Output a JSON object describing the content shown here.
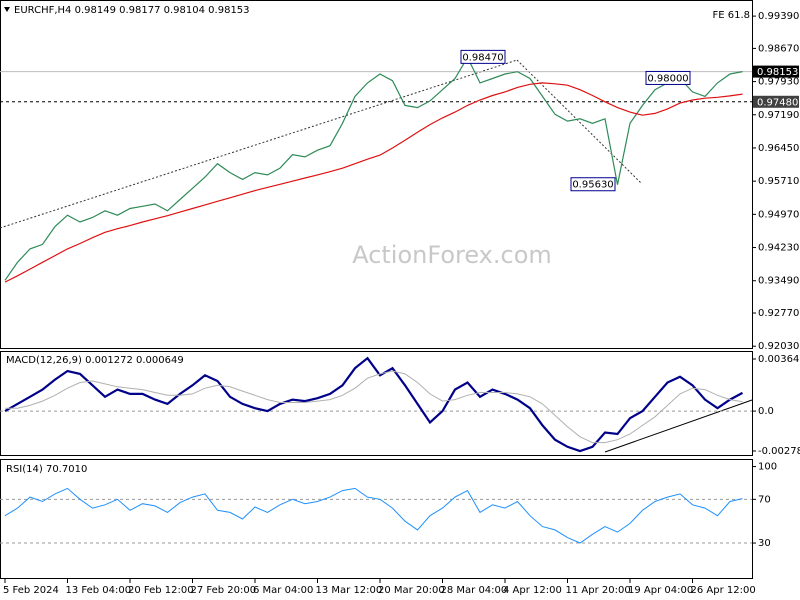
{
  "chart_data": [
    {
      "type": "line",
      "title": "EURCHF,H4 0.98149 0.98177 0.98104 0.98153",
      "fib_label": "FE 61.8",
      "watermark": "ActionForex.com",
      "ylim": [
        0.9199,
        0.9966
      ],
      "yticks": [
        {
          "value": 0.9939,
          "label": "0.99390"
        },
        {
          "value": 0.9867,
          "label": "0.98670"
        },
        {
          "value": 0.9793,
          "label": "0.97930"
        },
        {
          "value": 0.9719,
          "label": "0.97190"
        },
        {
          "value": 0.9645,
          "label": "0.96450"
        },
        {
          "value": 0.9571,
          "label": "0.95710"
        },
        {
          "value": 0.9497,
          "label": "0.94970"
        },
        {
          "value": 0.9423,
          "label": "0.94230"
        },
        {
          "value": 0.9349,
          "label": "0.93490"
        },
        {
          "value": 0.9277,
          "label": "0.92770"
        },
        {
          "value": 0.9203,
          "label": "0.92030"
        }
      ],
      "hlines": [
        {
          "value": 0.98153,
          "label": "0.98153",
          "color": "#000000",
          "style": "solid"
        },
        {
          "value": 0.9748,
          "label": "0.97480",
          "color": "#404040",
          "style": "dashed"
        }
      ],
      "annotations": [
        {
          "value": 0.9847,
          "label": "0.98470"
        },
        {
          "value": 0.98,
          "label": "0.98000"
        },
        {
          "value": 0.9563,
          "label": "0.95630"
        }
      ],
      "series": [
        {
          "name": "EURCHF",
          "color": "#2e8b57",
          "values": [
            0.935,
            0.939,
            0.942,
            0.943,
            0.947,
            0.9495,
            0.948,
            0.949,
            0.9505,
            0.9495,
            0.951,
            0.9515,
            0.952,
            0.9505,
            0.953,
            0.9555,
            0.958,
            0.961,
            0.959,
            0.9575,
            0.959,
            0.9585,
            0.96,
            0.963,
            0.9625,
            0.964,
            0.965,
            0.97,
            0.976,
            0.979,
            0.981,
            0.9795,
            0.974,
            0.9735,
            0.975,
            0.9775,
            0.98,
            0.9847,
            0.979,
            0.98,
            0.981,
            0.9815,
            0.98,
            0.976,
            0.972,
            0.9705,
            0.971,
            0.97,
            0.971,
            0.9563,
            0.97,
            0.974,
            0.9775,
            0.979,
            0.98,
            0.977,
            0.976,
            0.979,
            0.981,
            0.98153
          ]
        },
        {
          "name": "MA",
          "color": "#e01010",
          "values": [
            0.9346,
            0.936,
            0.9375,
            0.939,
            0.9405,
            0.942,
            0.9432,
            0.9445,
            0.9457,
            0.9465,
            0.9472,
            0.948,
            0.9487,
            0.9494,
            0.9502,
            0.951,
            0.9518,
            0.9526,
            0.9534,
            0.9542,
            0.955,
            0.9557,
            0.9564,
            0.9571,
            0.9578,
            0.9585,
            0.9592,
            0.96,
            0.961,
            0.962,
            0.9629,
            0.9645,
            0.9662,
            0.968,
            0.9697,
            0.9712,
            0.9725,
            0.974,
            0.9752,
            0.9762,
            0.977,
            0.978,
            0.9787,
            0.979,
            0.9788,
            0.9785,
            0.9775,
            0.9762,
            0.9748,
            0.9735,
            0.9725,
            0.9718,
            0.9722,
            0.9732,
            0.9745,
            0.9752,
            0.9756,
            0.9758,
            0.9761,
            0.9765
          ]
        }
      ]
    },
    {
      "type": "line",
      "title": "MACD(12,26,9) 0.001272 0.000649",
      "ylim": [
        -0.00307,
        0.00413
      ],
      "yticks": [
        0.003641,
        {
          "value": 0,
          "label": "0.0"
        },
        -0.002788
      ],
      "levels": [
        0
      ],
      "series": [
        {
          "name": "MACD",
          "color": "#00008b",
          "values": [
            0.0,
            0.0005,
            0.001,
            0.0015,
            0.0022,
            0.0028,
            0.0026,
            0.0018,
            0.001,
            0.0015,
            0.0012,
            0.0012,
            0.0008,
            0.0005,
            0.0012,
            0.0018,
            0.0025,
            0.0021,
            0.001,
            0.0005,
            0.0002,
            0.0,
            0.0005,
            0.0008,
            0.0007,
            0.0009,
            0.0012,
            0.0018,
            0.003,
            0.0037,
            0.0025,
            0.003,
            0.0018,
            0.0005,
            -0.0008,
            0.0,
            0.0015,
            0.002,
            0.001,
            0.0015,
            0.0012,
            0.0008,
            0.0002,
            -0.001,
            -0.002,
            -0.0025,
            -0.0028,
            -0.0025,
            -0.0015,
            -0.0016,
            -0.0005,
            0.0,
            0.001,
            0.002,
            0.0024,
            0.0018,
            0.0008,
            0.0002,
            0.0008,
            0.001272
          ]
        },
        {
          "name": "Signal",
          "color": "#b0b0b0",
          "values": [
            0.0002,
            0.0002,
            0.0004,
            0.0007,
            0.0011,
            0.0016,
            0.002,
            0.0021,
            0.0019,
            0.0017,
            0.0016,
            0.0015,
            0.0013,
            0.0011,
            0.0011,
            0.0012,
            0.0016,
            0.0018,
            0.0017,
            0.0014,
            0.0011,
            0.0008,
            0.0006,
            0.0006,
            0.0006,
            0.0007,
            0.0008,
            0.0011,
            0.0016,
            0.0023,
            0.0026,
            0.0028,
            0.0026,
            0.002,
            0.0012,
            0.0007,
            0.0008,
            0.0011,
            0.0013,
            0.0013,
            0.0013,
            0.0012,
            0.001,
            0.0005,
            -0.0003,
            -0.0011,
            -0.0018,
            -0.0022,
            -0.0022,
            -0.002,
            -0.0016,
            -0.001,
            -0.0004,
            0.0004,
            0.0012,
            0.0016,
            0.0015,
            0.0011,
            0.0008,
            0.000649
          ]
        }
      ]
    },
    {
      "type": "line",
      "title": "RSI(14) 70.7010",
      "ylim": [
        -2,
        106
      ],
      "yticks": [
        100,
        70,
        30
      ],
      "levels": [
        70,
        30
      ],
      "categories": [
        "5 Feb 2024",
        null,
        null,
        null,
        null,
        "13 Feb 04:00",
        null,
        null,
        null,
        null,
        "20 Feb 12:00",
        null,
        null,
        null,
        null,
        "27 Feb 20:00",
        null,
        null,
        null,
        null,
        "6 Mar 04:00",
        null,
        null,
        null,
        null,
        "13 Mar 12:00",
        null,
        null,
        null,
        null,
        "20 Mar 20:00",
        null,
        null,
        null,
        null,
        "28 Mar 04:00",
        null,
        null,
        null,
        null,
        "4 Apr 12:00",
        null,
        null,
        null,
        null,
        "11 Apr 20:00",
        null,
        null,
        null,
        null,
        "19 Apr 04:00",
        null,
        null,
        null,
        null,
        "26 Apr 12:00",
        null,
        null,
        null,
        null
      ],
      "series": [
        {
          "name": "RSI",
          "color": "#1e90ff",
          "values": [
            55,
            62,
            72,
            68,
            75,
            80,
            70,
            62,
            65,
            70,
            60,
            66,
            64,
            58,
            67,
            72,
            75,
            60,
            58,
            52,
            63,
            58,
            65,
            70,
            66,
            68,
            72,
            78,
            80,
            72,
            70,
            62,
            50,
            42,
            55,
            62,
            72,
            78,
            58,
            65,
            62,
            68,
            55,
            45,
            42,
            35,
            30,
            38,
            45,
            40,
            48,
            60,
            68,
            72,
            75,
            65,
            62,
            55,
            68,
            70.701
          ]
        }
      ]
    }
  ]
}
